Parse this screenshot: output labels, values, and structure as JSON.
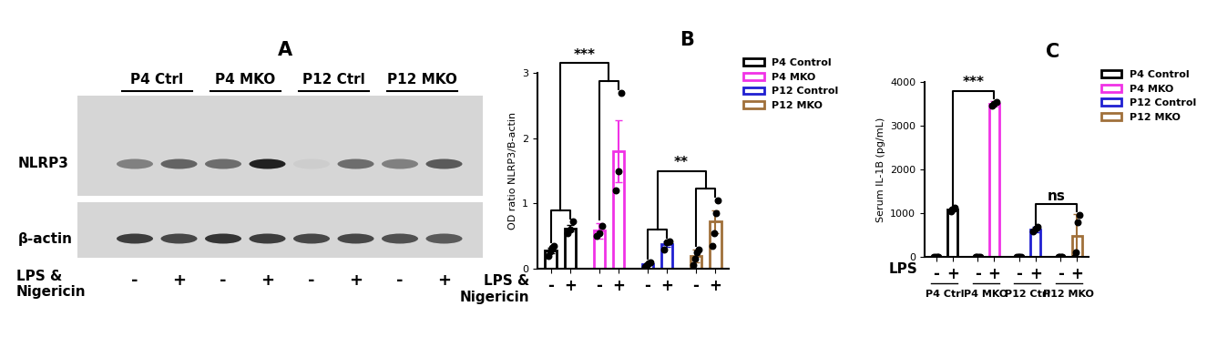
{
  "blot": {
    "title": "A",
    "groups": [
      "P4 Ctrl",
      "P4 MKO",
      "P12 Ctrl",
      "P12 MKO"
    ],
    "lanes": [
      "-",
      "+",
      "-",
      "+",
      "-",
      "+",
      "-",
      "+"
    ],
    "treatment_label": "LPS &\nNigericin",
    "rows": [
      {
        "label": "NLRP3",
        "intensity": [
          0.45,
          0.6,
          0.55,
          0.95,
          0.05,
          0.55,
          0.45,
          0.65
        ]
      },
      {
        "label": "β-actin",
        "intensity": [
          0.8,
          0.75,
          0.85,
          0.8,
          0.75,
          0.75,
          0.7,
          0.65
        ]
      }
    ]
  },
  "chart_data": [
    {
      "type": "bar",
      "title": "B",
      "y_label": "OD ratio NLRP3/B-actin",
      "x_label": "LPS &\nNigericin",
      "categories": [
        "-",
        "+"
      ],
      "ylim": [
        0,
        3
      ],
      "yticks": [
        0,
        1,
        2,
        3
      ],
      "legend": "upper left",
      "series": [
        {
          "name": "P4 Control",
          "color": "#000000",
          "values": [
            0.28,
            0.62
          ],
          "errors": [
            0.04,
            0.05
          ],
          "points": [
            [
              0.2,
              0.27,
              0.32,
              0.35
            ],
            [
              0.55,
              0.6,
              0.72
            ]
          ]
        },
        {
          "name": "P4 MKO",
          "color": "#f032e6",
          "values": [
            0.58,
            1.8
          ],
          "errors": [
            0.12,
            0.48
          ],
          "points": [
            [
              0.5,
              0.55,
              0.65
            ],
            [
              1.2,
              1.5,
              2.7
            ]
          ]
        },
        {
          "name": "P12 Control",
          "color": "#1f1fd1",
          "values": [
            0.07,
            0.38
          ],
          "errors": [
            0.02,
            0.04
          ],
          "points": [
            [
              0.03,
              0.05,
              0.08,
              0.1
            ],
            [
              0.3,
              0.4,
              0.42
            ]
          ]
        },
        {
          "name": "P12 MKO",
          "color": "#a0703a",
          "values": [
            0.2,
            0.72
          ],
          "errors": [
            0.1,
            0.18
          ],
          "points": [
            [
              0.05,
              0.15,
              0.25,
              0.3
            ],
            [
              0.35,
              0.55,
              0.85,
              1.05
            ]
          ]
        }
      ],
      "comparisons": [
        {
          "from": [
            0,
            0
          ],
          "to": [
            0,
            1
          ]
        },
        {
          "from": [
            1,
            0
          ],
          "to": [
            1,
            1
          ]
        },
        {
          "from": [
            2,
            0
          ],
          "to": [
            2,
            1
          ]
        },
        {
          "from": [
            3,
            0
          ],
          "to": [
            3,
            1
          ]
        },
        {
          "from": [
            0,
            null
          ],
          "to": [
            1,
            null
          ],
          "label": "***"
        },
        {
          "from": [
            2,
            null
          ],
          "to": [
            3,
            null
          ],
          "label": "**"
        }
      ]
    },
    {
      "type": "bar",
      "title": "C",
      "y_label": "Serum IL-1B (pg/mL)",
      "x_label": "LPS",
      "categories": [
        "-",
        "+"
      ],
      "ylim": [
        0,
        4000
      ],
      "yticks": [
        0,
        1000,
        2000,
        3000,
        4000
      ],
      "legend": "upper left",
      "group_labels": [
        "P4 Ctrl",
        "P4 MKO",
        "P12 Ctrl",
        "P12 MKO"
      ],
      "series": [
        {
          "name": "P4 Control",
          "color": "#000000",
          "values": [
            0,
            1080
          ],
          "errors": [
            0,
            25
          ],
          "points": [
            [
              0,
              0,
              0,
              0
            ],
            [
              1050,
              1080,
              1100,
              1120
            ]
          ]
        },
        {
          "name": "P4 MKO",
          "color": "#f032e6",
          "values": [
            0,
            3500
          ],
          "errors": [
            0,
            60
          ],
          "points": [
            [
              0,
              0,
              0,
              0
            ],
            [
              3450,
              3500,
              3550
            ]
          ]
        },
        {
          "name": "P12 Control",
          "color": "#1f1fd1",
          "values": [
            0,
            620
          ],
          "errors": [
            0,
            60
          ],
          "points": [
            [
              0,
              0,
              0,
              0
            ],
            [
              580,
              650,
              680
            ]
          ]
        },
        {
          "name": "P12 MKO",
          "color": "#a0703a",
          "values": [
            0,
            470
          ],
          "errors": [
            0,
            500
          ],
          "points": [
            [
              0,
              0,
              0,
              0
            ],
            [
              0,
              100,
              800,
              950
            ]
          ]
        }
      ],
      "comparisons": [
        {
          "from": [
            0,
            1
          ],
          "to": [
            1,
            1
          ],
          "label": "***"
        },
        {
          "from": [
            2,
            1
          ],
          "to": [
            3,
            1
          ],
          "label": "ns"
        }
      ]
    }
  ]
}
